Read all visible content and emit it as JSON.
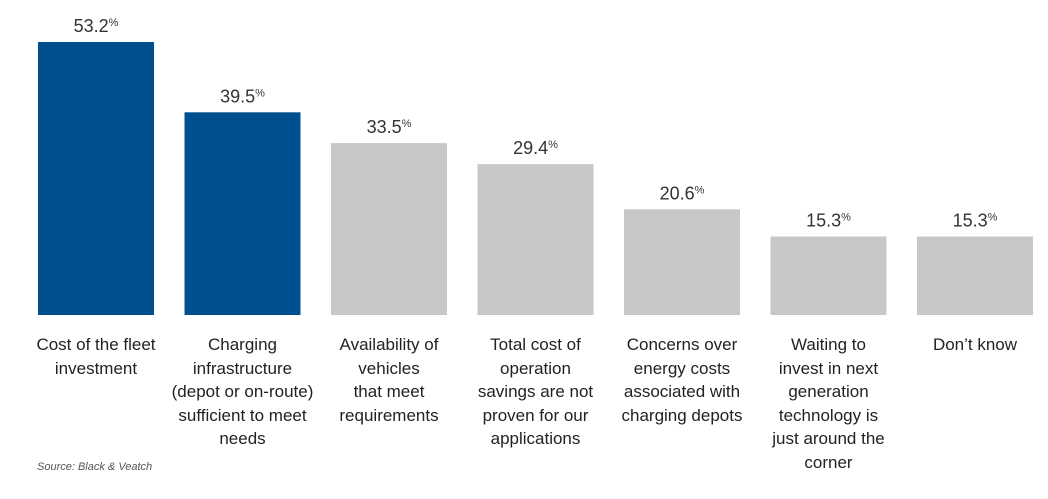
{
  "chart_data": {
    "type": "bar",
    "unit": "%",
    "categories": [
      "Cost of the fleet investment",
      "Charging infrastructure (depot or on-route) sufficient to meet needs",
      "Availability of vehicles that meet requirements",
      "Total cost of operation savings are not proven for our applications",
      "Concerns over energy costs associated with charging depots",
      "Waiting to invest in next generation technology is just around the corner",
      "Don’t  know"
    ],
    "category_lines": [
      [
        "Cost of the fleet",
        "investment"
      ],
      [
        "Charging",
        "infrastructure",
        "(depot or on-route)",
        "sufficient to meet",
        "needs"
      ],
      [
        "Availability of",
        "vehicles",
        "that meet",
        "requirements"
      ],
      [
        "Total cost of",
        "operation",
        "savings are not",
        "proven for our",
        "applications"
      ],
      [
        "Concerns over",
        "energy costs",
        "associated with",
        "charging depots"
      ],
      [
        "Waiting to",
        "invest in next",
        "generation",
        "technology is",
        "just around the",
        "corner"
      ],
      [
        "Don’t  know"
      ]
    ],
    "values": [
      53.2,
      39.5,
      33.5,
      29.4,
      20.6,
      15.3,
      15.3
    ],
    "value_labels": [
      "53.2",
      "39.5",
      "33.5",
      "29.4",
      "20.6",
      "15.3",
      "15.3"
    ],
    "highlighted": [
      true,
      true,
      false,
      false,
      false,
      false,
      false
    ],
    "colors": {
      "highlight": "#00508F",
      "default": "#C8C8C8"
    },
    "ylim": [
      0,
      53.2
    ],
    "grid": false,
    "title": "",
    "xlabel": "",
    "ylabel": ""
  },
  "source": "Source: Black & Veatch"
}
